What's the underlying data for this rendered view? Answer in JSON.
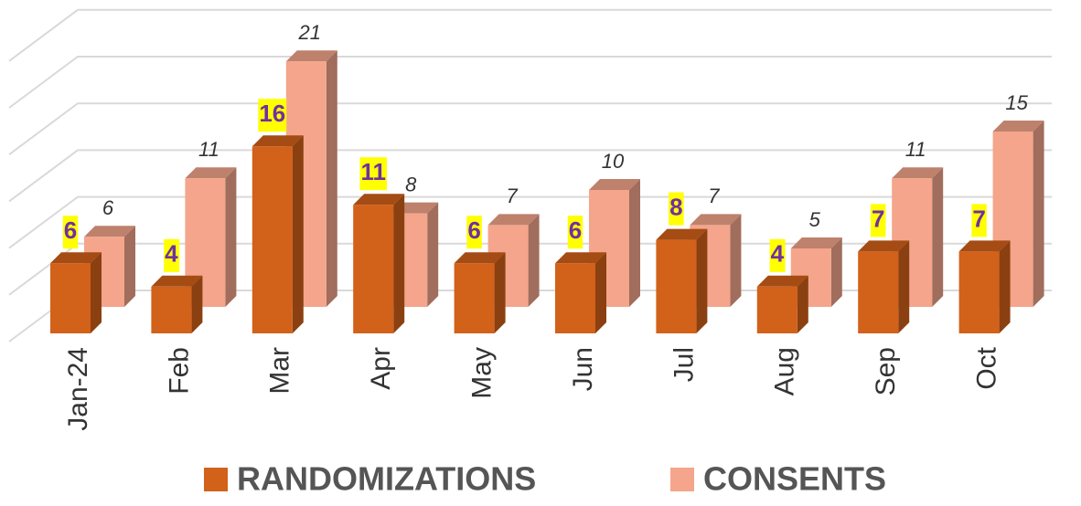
{
  "chart_data": {
    "type": "bar3d",
    "categories": [
      "Jan-24",
      "Feb",
      "Mar",
      "Apr",
      "May",
      "Jun",
      "Jul",
      "Aug",
      "Sep",
      "Oct"
    ],
    "series": [
      {
        "name": "RANDOMIZATIONS",
        "color": "#d2611a",
        "values": [
          6,
          4,
          16,
          11,
          6,
          6,
          8,
          4,
          7,
          7
        ]
      },
      {
        "name": "CONSENTS",
        "color": "#f4a58b",
        "values": [
          6,
          11,
          21,
          8,
          7,
          10,
          7,
          5,
          11,
          15
        ]
      }
    ],
    "ylim": [
      0,
      25
    ],
    "yticks": [
      0,
      4,
      8,
      12,
      16,
      20,
      24
    ],
    "grid": true,
    "legend": "bottom"
  }
}
